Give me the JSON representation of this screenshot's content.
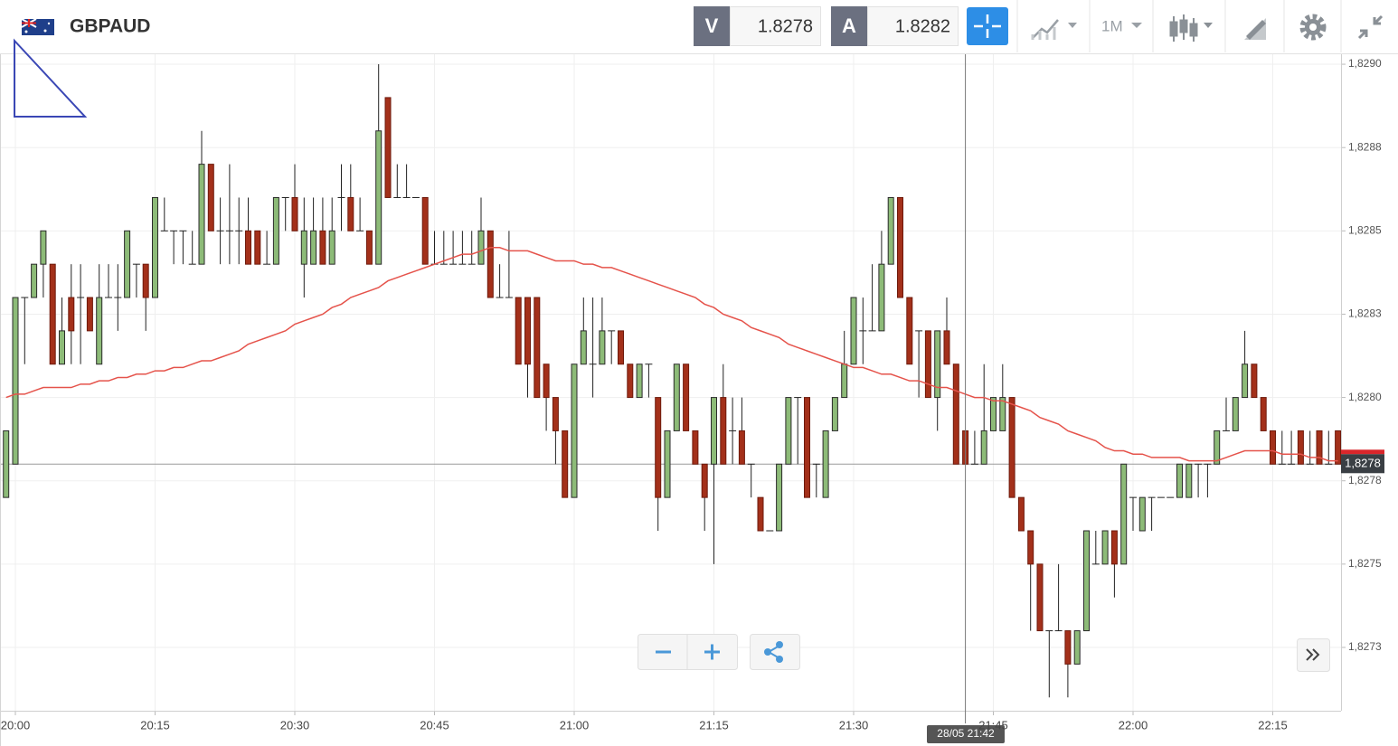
{
  "header": {
    "symbol": "GBPAUD",
    "sell": {
      "label": "V",
      "price": 1.8278
    },
    "buy": {
      "label": "A",
      "price": 1.8282
    },
    "timeframe": "1M"
  },
  "chart_data": {
    "type": "candlestick",
    "x": [
      null,
      "20:00",
      null,
      null,
      null,
      null,
      null,
      null,
      null,
      null,
      null,
      null,
      null,
      null,
      null,
      null,
      "20:15",
      null,
      null,
      null,
      null,
      null,
      null,
      null,
      null,
      null,
      null,
      null,
      null,
      null,
      null,
      "20:30",
      null,
      null,
      null,
      null,
      null,
      null,
      null,
      null,
      null,
      null,
      null,
      null,
      null,
      null,
      "20:45",
      null,
      null,
      null,
      null,
      null,
      null,
      null,
      null,
      null,
      null,
      null,
      null,
      null,
      null,
      "21:00",
      null,
      null,
      null,
      null,
      null,
      null,
      null,
      null,
      null,
      null,
      null,
      null,
      null,
      null,
      "21:15",
      null,
      null,
      null,
      null,
      null,
      null,
      null,
      null,
      null,
      null,
      null,
      null,
      null,
      null,
      "21:30",
      null,
      null,
      null,
      null,
      null,
      null,
      null,
      null,
      null,
      null,
      null,
      null,
      null,
      null,
      "21:45",
      null,
      null,
      null,
      null,
      null,
      null,
      null,
      null,
      null,
      null,
      null,
      null,
      null,
      null,
      "22:00",
      null,
      null,
      null,
      null,
      null,
      null,
      null,
      null,
      null,
      null,
      null,
      null,
      null,
      null,
      "22:15",
      null,
      null,
      null,
      null,
      null,
      null,
      null
    ],
    "open": [
      1.8277,
      1.8278,
      1.8283,
      1.8283,
      1.8284,
      1.8284,
      1.8281,
      1.8283,
      1.8283,
      1.8283,
      1.8281,
      1.8283,
      1.8283,
      1.8283,
      1.8284,
      1.8284,
      1.8283,
      1.8285,
      1.8285,
      1.8285,
      1.8284,
      1.8284,
      1.8287,
      1.8285,
      1.8285,
      1.8285,
      1.8285,
      1.8285,
      1.8284,
      1.8284,
      1.8286,
      1.8286,
      1.8284,
      1.8284,
      1.8285,
      1.8284,
      1.8286,
      1.8286,
      1.8285,
      1.8285,
      1.8284,
      1.8289,
      1.8286,
      1.8286,
      1.8286,
      1.8286,
      1.8284,
      1.8284,
      1.8284,
      1.8284,
      1.8284,
      1.8284,
      1.8285,
      1.8283,
      1.8283,
      1.8283,
      1.8283,
      1.8283,
      1.8281,
      1.828,
      1.8279,
      1.8277,
      1.8281,
      1.8281,
      1.8281,
      1.8282,
      1.8282,
      1.8281,
      1.828,
      1.8281,
      1.828,
      1.8277,
      1.8279,
      1.8281,
      1.8279,
      1.8278,
      1.8278,
      1.828,
      1.8279,
      1.8279,
      1.8278,
      1.8277,
      1.8276,
      1.8276,
      1.8278,
      1.828,
      1.828,
      1.8278,
      1.8277,
      1.8279,
      1.828,
      1.8281,
      1.8282,
      1.8282,
      1.8282,
      1.8284,
      1.8286,
      1.8283,
      1.8282,
      1.8282,
      1.828,
      1.8282,
      1.8281,
      1.8279,
      1.8278,
      1.8278,
      1.8279,
      1.8279,
      1.828,
      1.8277,
      1.8276,
      1.8275,
      1.8273,
      1.8273,
      1.8273,
      1.8272,
      1.8273,
      1.8275,
      1.8275,
      1.8276,
      1.8275,
      1.8277,
      1.8276,
      1.8277,
      1.8277,
      1.8277,
      1.8277,
      1.8277,
      1.8278,
      1.8278,
      1.8278,
      1.8279,
      1.8279,
      1.828,
      1.8281,
      1.828,
      1.8279,
      1.8278,
      1.8278,
      1.8279,
      1.8278,
      1.8279,
      1.8278,
      1.8279
    ],
    "high": [
      1.8279,
      1.8283,
      1.8283,
      1.8284,
      1.8285,
      1.8284,
      1.8283,
      1.8284,
      1.8284,
      1.8283,
      1.8284,
      1.8284,
      1.8284,
      1.8285,
      1.8284,
      1.8284,
      1.8286,
      1.8286,
      1.8285,
      1.8285,
      1.8285,
      1.8288,
      1.8287,
      1.8286,
      1.8287,
      1.8286,
      1.8286,
      1.8285,
      1.8285,
      1.8286,
      1.8286,
      1.8287,
      1.8286,
      1.8286,
      1.8286,
      1.8286,
      1.8287,
      1.8287,
      1.8286,
      1.8285,
      1.829,
      1.8289,
      1.8287,
      1.8287,
      1.8286,
      1.8286,
      1.8285,
      1.8285,
      1.8285,
      1.8285,
      1.8285,
      1.8286,
      1.8285,
      1.8284,
      1.8285,
      1.8283,
      1.8283,
      1.8283,
      1.8281,
      1.828,
      1.8279,
      1.8281,
      1.8283,
      1.8283,
      1.8283,
      1.8282,
      1.8282,
      1.8281,
      1.8281,
      1.8281,
      1.828,
      1.8279,
      1.8281,
      1.8281,
      1.8279,
      1.8278,
      1.828,
      1.8281,
      1.828,
      1.828,
      1.8278,
      1.8277,
      1.8276,
      1.8278,
      1.828,
      1.828,
      1.828,
      1.8278,
      1.8279,
      1.828,
      1.8282,
      1.8283,
      1.8283,
      1.8284,
      1.8285,
      1.8286,
      1.8286,
      1.8283,
      1.8282,
      1.8282,
      1.8282,
      1.8283,
      1.8281,
      1.8279,
      1.8279,
      1.8281,
      1.828,
      1.8281,
      1.828,
      1.8277,
      1.8276,
      1.8275,
      1.8273,
      1.8275,
      1.8273,
      1.8273,
      1.8276,
      1.8276,
      1.8276,
      1.8276,
      1.8278,
      1.8277,
      1.8277,
      1.8277,
      1.8277,
      1.8277,
      1.8278,
      1.8278,
      1.8278,
      1.8278,
      1.8279,
      1.828,
      1.828,
      1.8282,
      1.8281,
      1.828,
      1.8279,
      1.8279,
      1.8279,
      1.8279,
      1.8279,
      1.8279,
      1.8279,
      1.8279
    ],
    "low": [
      1.8277,
      1.8278,
      1.8281,
      1.8283,
      1.8283,
      1.8281,
      1.8281,
      1.8281,
      1.8281,
      1.8282,
      1.8281,
      1.8283,
      1.8282,
      1.8283,
      1.8283,
      1.8282,
      1.8283,
      1.8285,
      1.8284,
      1.8284,
      1.8284,
      1.8284,
      1.8285,
      1.8284,
      1.8284,
      1.8284,
      1.8284,
      1.8284,
      1.8284,
      1.8284,
      1.8285,
      1.8285,
      1.8283,
      1.8284,
      1.8284,
      1.8284,
      1.8285,
      1.8285,
      1.8285,
      1.8284,
      1.8284,
      1.8286,
      1.8286,
      1.8286,
      1.8286,
      1.8284,
      1.8284,
      1.8284,
      1.8284,
      1.8284,
      1.8284,
      1.8284,
      1.8283,
      1.8283,
      1.8283,
      1.8281,
      1.828,
      1.828,
      1.8279,
      1.8278,
      1.8277,
      1.8277,
      1.8281,
      1.828,
      1.8281,
      1.8281,
      1.8281,
      1.828,
      1.828,
      1.828,
      1.8276,
      1.8277,
      1.8279,
      1.8279,
      1.8278,
      1.8276,
      1.8275,
      1.8278,
      1.8278,
      1.8278,
      1.8277,
      1.8276,
      1.8276,
      1.8276,
      1.8278,
      1.8278,
      1.8277,
      1.8277,
      1.8277,
      1.8279,
      1.828,
      1.8281,
      1.8281,
      1.8282,
      1.8282,
      1.8284,
      1.8283,
      1.8281,
      1.828,
      1.828,
      1.8279,
      1.8281,
      1.8278,
      1.8278,
      1.8278,
      1.8278,
      1.8279,
      1.8279,
      1.8277,
      1.8276,
      1.8273,
      1.8273,
      1.8271,
      1.8273,
      1.8271,
      1.8272,
      1.8273,
      1.8275,
      1.8275,
      1.8274,
      1.8275,
      1.8276,
      1.8276,
      1.8276,
      1.8277,
      1.8277,
      1.8277,
      1.8277,
      1.8277,
      1.8277,
      1.8278,
      1.8279,
      1.8279,
      1.828,
      1.828,
      1.8279,
      1.8278,
      1.8278,
      1.8278,
      1.8278,
      1.8278,
      1.8278,
      1.8278,
      1.8278
    ],
    "close": [
      1.8279,
      1.8283,
      1.8283,
      1.8284,
      1.8285,
      1.8281,
      1.8282,
      1.8282,
      1.8283,
      1.8282,
      1.8283,
      1.8283,
      1.8283,
      1.8285,
      1.8284,
      1.8283,
      1.8286,
      1.8285,
      1.8285,
      1.8285,
      1.8284,
      1.8287,
      1.8285,
      1.8285,
      1.8285,
      1.8285,
      1.8284,
      1.8284,
      1.8284,
      1.8286,
      1.8286,
      1.8285,
      1.8285,
      1.8285,
      1.8284,
      1.8285,
      1.8286,
      1.8285,
      1.8285,
      1.8284,
      1.8288,
      1.8286,
      1.8286,
      1.8286,
      1.8286,
      1.8284,
      1.8284,
      1.8284,
      1.8284,
      1.8284,
      1.8284,
      1.8285,
      1.8283,
      1.8283,
      1.8283,
      1.8281,
      1.8281,
      1.828,
      1.828,
      1.8279,
      1.8277,
      1.8281,
      1.8282,
      1.8281,
      1.8282,
      1.8282,
      1.8281,
      1.828,
      1.8281,
      1.8281,
      1.8277,
      1.8279,
      1.8281,
      1.8279,
      1.8278,
      1.8277,
      1.828,
      1.8278,
      1.8279,
      1.8278,
      1.8278,
      1.8276,
      1.8276,
      1.8278,
      1.828,
      1.828,
      1.8277,
      1.8278,
      1.8279,
      1.828,
      1.8281,
      1.8283,
      1.8282,
      1.8282,
      1.8284,
      1.8286,
      1.8283,
      1.8281,
      1.8282,
      1.828,
      1.8282,
      1.8281,
      1.8278,
      1.8278,
      1.8278,
      1.8279,
      1.828,
      1.828,
      1.8277,
      1.8276,
      1.8275,
      1.8273,
      1.8273,
      1.8273,
      1.8272,
      1.8273,
      1.8276,
      1.8275,
      1.8276,
      1.8275,
      1.8278,
      1.8277,
      1.8277,
      1.8277,
      1.8277,
      1.8277,
      1.8278,
      1.8278,
      1.8278,
      1.8278,
      1.8279,
      1.8279,
      1.828,
      1.8281,
      1.828,
      1.8279,
      1.8278,
      1.8278,
      1.8278,
      1.8278,
      1.8278,
      1.8278,
      1.8278,
      1.8278
    ],
    "up_color": "#8dbb78",
    "down_color": "#a3301a",
    "moving_average": {
      "color": "#e5534b",
      "values": [
        1.828,
        1.82801,
        1.82801,
        1.82802,
        1.82803,
        1.82803,
        1.82803,
        1.82803,
        1.82804,
        1.82804,
        1.82805,
        1.82805,
        1.82806,
        1.82806,
        1.82807,
        1.82807,
        1.82808,
        1.82808,
        1.82809,
        1.82809,
        1.8281,
        1.82811,
        1.82811,
        1.82812,
        1.82813,
        1.82814,
        1.82816,
        1.82817,
        1.82818,
        1.82819,
        1.8282,
        1.82822,
        1.82823,
        1.82824,
        1.82825,
        1.82827,
        1.82828,
        1.8283,
        1.82831,
        1.82832,
        1.82833,
        1.82835,
        1.82836,
        1.82837,
        1.82838,
        1.82839,
        1.8284,
        1.82841,
        1.82842,
        1.82843,
        1.82843,
        1.82844,
        1.82845,
        1.82845,
        1.82844,
        1.82844,
        1.82844,
        1.82843,
        1.82842,
        1.82841,
        1.82841,
        1.82841,
        1.8284,
        1.8284,
        1.82839,
        1.82839,
        1.82838,
        1.82837,
        1.82836,
        1.82835,
        1.82834,
        1.82833,
        1.82832,
        1.82831,
        1.8283,
        1.82828,
        1.82827,
        1.82825,
        1.82824,
        1.82823,
        1.82821,
        1.8282,
        1.82819,
        1.82818,
        1.82816,
        1.82815,
        1.82814,
        1.82813,
        1.82812,
        1.82811,
        1.8281,
        1.82809,
        1.82809,
        1.82808,
        1.82807,
        1.82807,
        1.82806,
        1.82805,
        1.82805,
        1.82804,
        1.82803,
        1.82803,
        1.82802,
        1.82801,
        1.828,
        1.828,
        1.82799,
        1.82799,
        1.82798,
        1.82797,
        1.82796,
        1.82794,
        1.82793,
        1.82792,
        1.8279,
        1.82789,
        1.82788,
        1.82787,
        1.82785,
        1.82784,
        1.82784,
        1.82783,
        1.82783,
        1.82782,
        1.82782,
        1.82782,
        1.82782,
        1.82781,
        1.82781,
        1.82781,
        1.82781,
        1.82782,
        1.82783,
        1.82784,
        1.82784,
        1.82784,
        1.82784,
        1.82783,
        1.82783,
        1.82783,
        1.82782,
        1.82782,
        1.82781,
        1.82781
      ]
    },
    "ylim": [
      1.82706,
      1.82903
    ],
    "yticks": [
      {
        "value": 1.829,
        "label": "1,8290"
      },
      {
        "value": 1.82875,
        "label": "1,8288"
      },
      {
        "value": 1.8285,
        "label": "1,8285"
      },
      {
        "value": 1.82825,
        "label": "1,8283"
      },
      {
        "value": 1.828,
        "label": "1,8280"
      },
      {
        "value": 1.82775,
        "label": "1,8278"
      },
      {
        "value": 1.8275,
        "label": "1,8275"
      },
      {
        "value": 1.82725,
        "label": "1,8273"
      }
    ],
    "grid": true,
    "last_price": {
      "value": 1.8278,
      "label": "1,8278"
    },
    "crosshair_label": "28/05 21:42"
  }
}
